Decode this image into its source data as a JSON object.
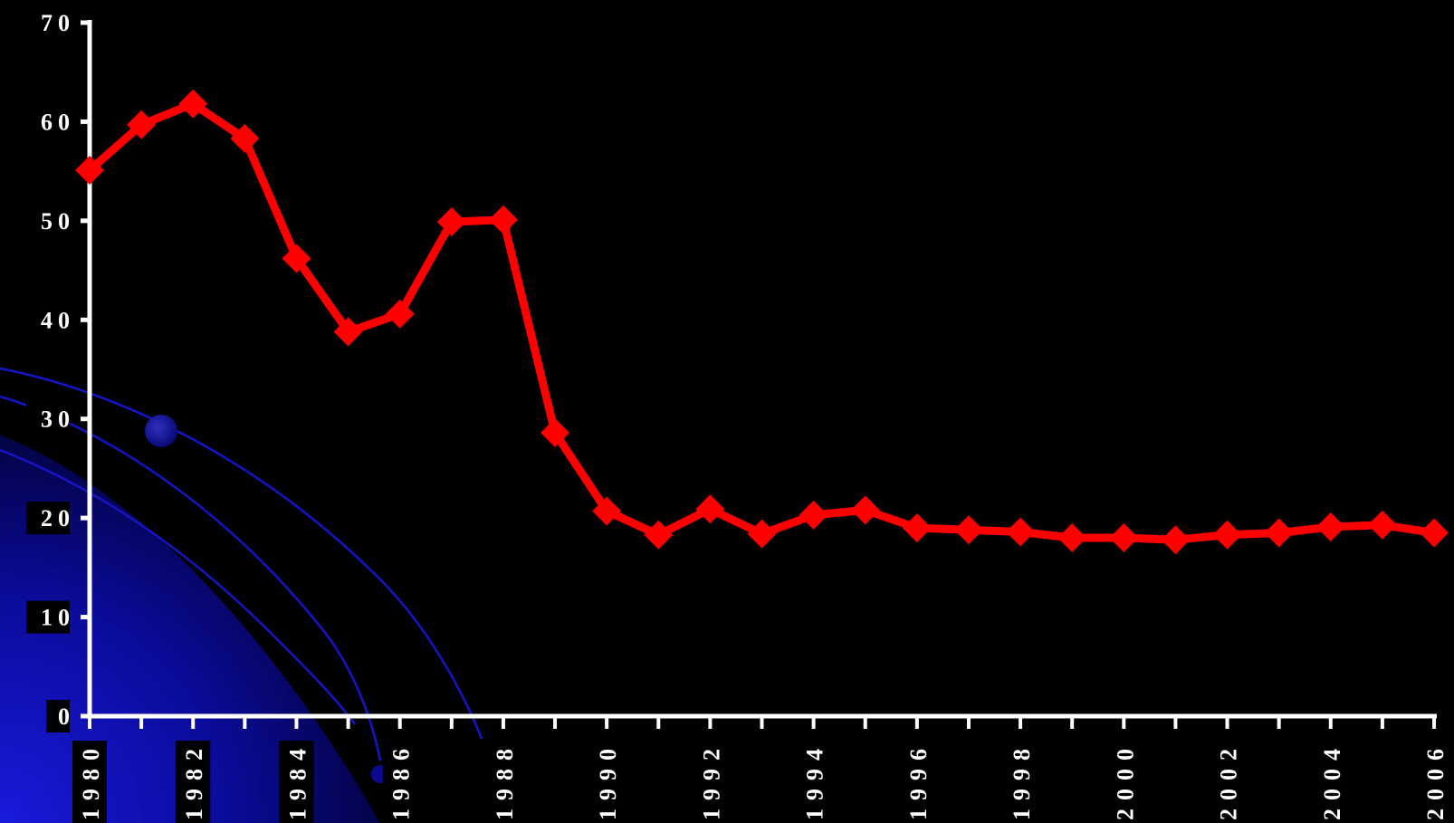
{
  "chart_data": {
    "type": "line",
    "title": "",
    "xlabel": "",
    "ylabel": "",
    "x": [
      1980,
      1981,
      1982,
      1983,
      1984,
      1985,
      1986,
      1987,
      1988,
      1989,
      1990,
      1991,
      1992,
      1993,
      1994,
      1995,
      1996,
      1997,
      1998,
      1999,
      2000,
      2001,
      2002,
      2003,
      2004,
      2005,
      2006
    ],
    "x_tick_labels": [
      "1980",
      "1982",
      "1984",
      "1986",
      "1988",
      "1990",
      "1992",
      "1994",
      "1996",
      "1998",
      "2000",
      "2002",
      "2004",
      "2006"
    ],
    "y_tick_labels": [
      "0",
      "10",
      "20",
      "30",
      "40",
      "50",
      "60",
      "70"
    ],
    "ylim": [
      0,
      70
    ],
    "grid": false,
    "legend": "none",
    "series": [
      {
        "values": [
          55.1,
          59.7,
          61.8,
          58.3,
          46.2,
          38.8,
          40.6,
          49.9,
          50.1,
          28.6,
          20.7,
          18.3,
          20.9,
          18.4,
          20.3,
          20.8,
          19.0,
          18.8,
          18.6,
          18.0,
          18.0,
          17.8,
          18.3,
          18.5,
          19.1,
          19.3,
          18.5
        ],
        "color": "#ff0000",
        "marker": "diamond"
      }
    ],
    "colors": {
      "background": "#000000",
      "axis": "#ffffff",
      "series": "#ff0000",
      "decoration": "#0a0fd0"
    }
  }
}
